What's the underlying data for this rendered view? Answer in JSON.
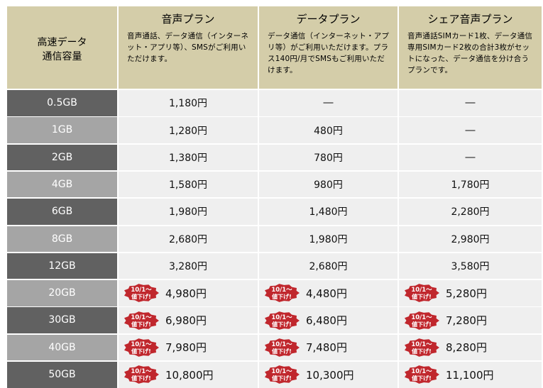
{
  "header": {
    "capacity_label": "高速データ\n通信容量",
    "plans": [
      {
        "name": "音声プラン",
        "desc": "音声通話、データ通信（インターネット・アプリ等）、SMSがご利用いただけます。"
      },
      {
        "name": "データプラン",
        "desc": "データ通信（インターネット・アプリ等）がご利用いただけます。プラス140円/月でSMSもご利用いただけます。"
      },
      {
        "name": "シェア音声プラン",
        "desc": "音声通話SIMカード1枚、データ通信専用SIMカード2枚の合計3枚がセットになった、データ通信を分け合うプランです。"
      }
    ]
  },
  "badge": {
    "line1": "10/1～",
    "line2": "値下げ!",
    "color": "#c0272d"
  },
  "colors": {
    "header_bg": "#d4cda9",
    "capacity_dark": "#616161",
    "capacity_light": "#a5a5a5",
    "cell_bg": "#efefef"
  },
  "rows": [
    {
      "cap": "0.5GB",
      "voice": "1,180円",
      "data": "―",
      "share": "―",
      "badge": false
    },
    {
      "cap": "1GB",
      "voice": "1,280円",
      "data": "480円",
      "share": "―",
      "badge": false
    },
    {
      "cap": "2GB",
      "voice": "1,380円",
      "data": "780円",
      "share": "―",
      "badge": false
    },
    {
      "cap": "4GB",
      "voice": "1,580円",
      "data": "980円",
      "share": "1,780円",
      "badge": false
    },
    {
      "cap": "6GB",
      "voice": "1,980円",
      "data": "1,480円",
      "share": "2,280円",
      "badge": false
    },
    {
      "cap": "8GB",
      "voice": "2,680円",
      "data": "1,980円",
      "share": "2,980円",
      "badge": false
    },
    {
      "cap": "12GB",
      "voice": "3,280円",
      "data": "2,680円",
      "share": "3,580円",
      "badge": false
    },
    {
      "cap": "20GB",
      "voice": "4,980円",
      "data": "4,480円",
      "share": "5,280円",
      "badge": true
    },
    {
      "cap": "30GB",
      "voice": "6,980円",
      "data": "6,480円",
      "share": "7,280円",
      "badge": true
    },
    {
      "cap": "40GB",
      "voice": "7,980円",
      "data": "7,480円",
      "share": "8,280円",
      "badge": true
    },
    {
      "cap": "50GB",
      "voice": "10,800円",
      "data": "10,300円",
      "share": "11,100円",
      "badge": true
    }
  ]
}
